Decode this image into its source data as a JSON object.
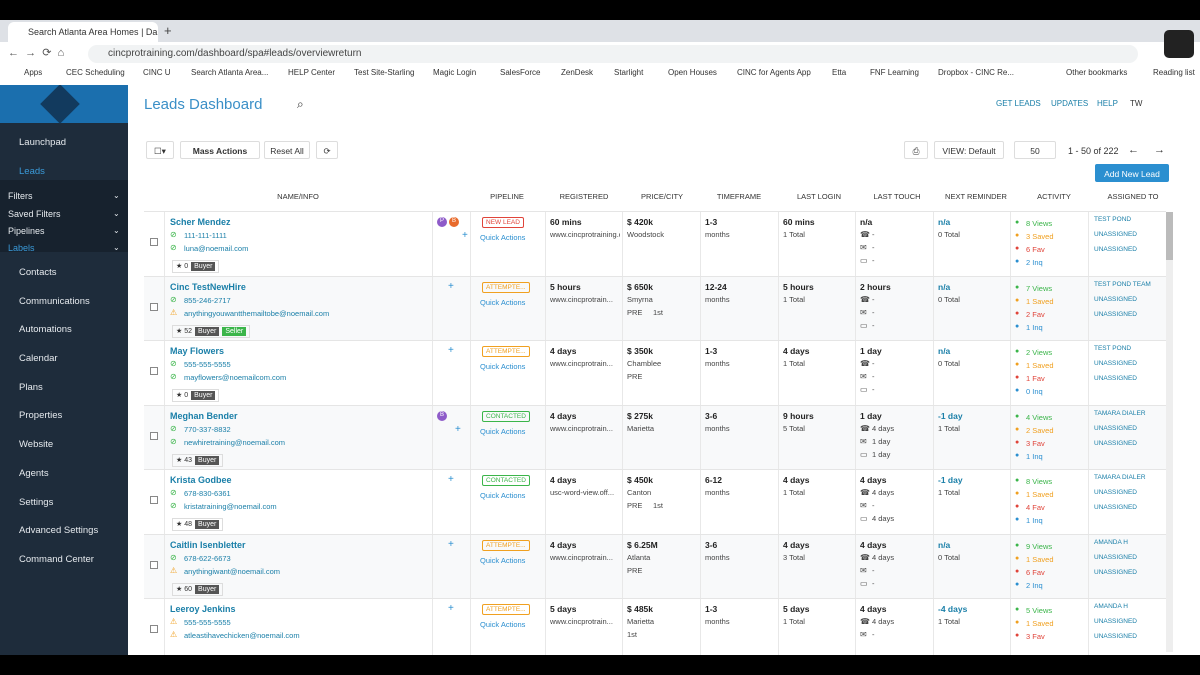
{
  "browser": {
    "tab_title": "Search Atlanta Area Homes | Da",
    "url": "cincprotraining.com/dashboard/spa#leads/overviewreturn",
    "bookmarks": [
      "Apps",
      "CEC Scheduling",
      "CINC U",
      "Search Atlanta Area...",
      "HELP Center",
      "Test Site-Starling",
      "Magic Login",
      "SalesForce",
      "ZenDesk",
      "Starlight",
      "Open Houses",
      "CINC for Agents App",
      "Etta",
      "FNF Learning",
      "Dropbox - CINC Re..."
    ],
    "other_bookmarks": "Other bookmarks",
    "reading_list": "Reading list"
  },
  "sidebar": {
    "top": [
      "Launchpad",
      "Leads"
    ],
    "sub": [
      "Filters",
      "Saved Filters",
      "Pipelines",
      "Labels"
    ],
    "items": [
      "Contacts",
      "Communications",
      "Automations",
      "Calendar",
      "Plans",
      "Properties",
      "Website",
      "Agents",
      "Settings",
      "Advanced Settings",
      "Command Center"
    ]
  },
  "header": {
    "title": "Leads Dashboard",
    "links": [
      "GET LEADS",
      "UPDATES",
      "HELP",
      "TW"
    ]
  },
  "toolbar": {
    "mass_actions": "Mass Actions",
    "reset": "Reset All",
    "view": "VIEW: Default",
    "per_page": "50",
    "range": "1 - 50 of 222",
    "add": "Add New Lead"
  },
  "columns": [
    "NAME/INFO",
    "PIPELINE",
    "REGISTERED",
    "PRICE/CITY",
    "TIMEFRAME",
    "LAST LOGIN",
    "LAST TOUCH",
    "NEXT REMINDER",
    "ACTIVITY",
    "ASSIGNED TO"
  ],
  "quick_actions": "Quick Actions",
  "leads": [
    {
      "name": "Scher Mendez",
      "phone": "111-111-1111",
      "email": "luna@noemail.com",
      "verified": [
        true,
        true
      ],
      "score": "0",
      "tags": [
        "Buyer"
      ],
      "avatars": [
        "P",
        "B"
      ],
      "pipeline": "NEW LEAD",
      "registered": [
        "60 mins",
        "www.cincprotraining.com"
      ],
      "price": "$ 420k",
      "city": [
        "Woodstock"
      ],
      "timeframe": [
        "1-3",
        "months"
      ],
      "login": [
        "60 mins",
        "1 Total"
      ],
      "touch": [
        "n/a",
        "-",
        "-",
        "-"
      ],
      "reminder": [
        "n/a",
        "0 Total"
      ],
      "activity": [
        "8 Views",
        "3 Saved",
        "6 Fav",
        "2 Inq"
      ],
      "assigned": [
        "TEST POND",
        "UNASSIGNED",
        "UNASSIGNED"
      ]
    },
    {
      "name": "Cinc TestNewHire",
      "phone": "855-246-2717",
      "email": "anythingyouwantthemailtobe@noemail.com",
      "verified": [
        true,
        false
      ],
      "score": "52",
      "tags": [
        "Buyer",
        "Seller"
      ],
      "avatars": [],
      "pipeline": "ATTEMPTE...",
      "registered": [
        "5 hours",
        "www.cincprotrain..."
      ],
      "price": "$ 650k",
      "city": [
        "Smyrna",
        "PRE",
        "1st"
      ],
      "timeframe": [
        "12-24",
        "months"
      ],
      "login": [
        "5 hours",
        "1 Total"
      ],
      "touch": [
        "2 hours",
        "-",
        "-",
        "-"
      ],
      "reminder": [
        "n/a",
        "0 Total"
      ],
      "activity": [
        "7 Views",
        "1 Saved",
        "2 Fav",
        "1 Inq"
      ],
      "assigned": [
        "TEST POND TEAM",
        "UNASSIGNED",
        "UNASSIGNED"
      ]
    },
    {
      "name": "May Flowers",
      "phone": "555-555-5555",
      "email": "mayflowers@noemailcom.com",
      "verified": [
        true,
        true
      ],
      "score": "0",
      "tags": [
        "Buyer"
      ],
      "avatars": [],
      "pipeline": "ATTEMPTE...",
      "registered": [
        "4 days",
        "www.cincprotrain..."
      ],
      "price": "$ 350k",
      "city": [
        "Chamblee",
        "PRE"
      ],
      "timeframe": [
        "1-3",
        "months"
      ],
      "login": [
        "4 days",
        "1 Total"
      ],
      "touch": [
        "1 day",
        "-",
        "-",
        "-"
      ],
      "reminder": [
        "n/a",
        "0 Total"
      ],
      "activity": [
        "2 Views",
        "1 Saved",
        "1 Fav",
        "0 Inq"
      ],
      "assigned": [
        "TEST POND",
        "UNASSIGNED",
        "UNASSIGNED"
      ]
    },
    {
      "name": "Meghan Bender",
      "phone": "770-337-8832",
      "email": "newhiretraining@noemail.com",
      "verified": [
        true,
        true
      ],
      "score": "43",
      "tags": [
        "Buyer"
      ],
      "avatars": [
        "B"
      ],
      "pipeline": "CONTACTED",
      "registered": [
        "4 days",
        "www.cincprotrain..."
      ],
      "price": "$ 275k",
      "city": [
        "Marietta"
      ],
      "timeframe": [
        "3-6",
        "months"
      ],
      "login": [
        "9 hours",
        "5 Total"
      ],
      "touch": [
        "1 day",
        "4 days",
        "1 day",
        "1 day"
      ],
      "reminder": [
        "-1 day",
        "1 Total"
      ],
      "activity": [
        "4 Views",
        "2 Saved",
        "3 Fav",
        "1 Inq"
      ],
      "assigned": [
        "TAMARA DIALER",
        "UNASSIGNED",
        "UNASSIGNED"
      ]
    },
    {
      "name": "Krista Godbee",
      "phone": "678-830-6361",
      "email": "kristatraining@noemail.com",
      "verified": [
        true,
        true
      ],
      "score": "48",
      "tags": [
        "Buyer"
      ],
      "avatars": [],
      "pipeline": "CONTACTED",
      "registered": [
        "4 days",
        "usc-word-view.off..."
      ],
      "price": "$ 450k",
      "city": [
        "Canton",
        "PRE",
        "1st"
      ],
      "timeframe": [
        "6-12",
        "months"
      ],
      "login": [
        "4 days",
        "1 Total"
      ],
      "touch": [
        "4 days",
        "4 days",
        "-",
        "4 days"
      ],
      "reminder": [
        "-1 day",
        "1 Total"
      ],
      "activity": [
        "8 Views",
        "1 Saved",
        "4 Fav",
        "1 Inq"
      ],
      "assigned": [
        "TAMARA DIALER",
        "UNASSIGNED",
        "UNASSIGNED"
      ]
    },
    {
      "name": "Caitlin Isenbletter",
      "phone": "678-622-6673",
      "email": "anythingiwant@noemail.com",
      "verified": [
        true,
        false
      ],
      "score": "60",
      "tags": [
        "Buyer"
      ],
      "avatars": [],
      "pipeline": "ATTEMPTE...",
      "registered": [
        "4 days",
        "www.cincprotrain..."
      ],
      "price": "$ 6.25M",
      "city": [
        "Atlanta",
        "PRE"
      ],
      "timeframe": [
        "3-6",
        "months"
      ],
      "login": [
        "4 days",
        "3 Total"
      ],
      "touch": [
        "4 days",
        "4 days",
        "-",
        "-"
      ],
      "reminder": [
        "n/a",
        "0 Total"
      ],
      "activity": [
        "9 Views",
        "1 Saved",
        "6 Fav",
        "2 Inq"
      ],
      "assigned": [
        "AMANDA H",
        "UNASSIGNED",
        "UNASSIGNED"
      ]
    },
    {
      "name": "Leeroy Jenkins",
      "phone": "555-555-5555",
      "email": "atleastihavechicken@noemail.com",
      "verified": [
        false,
        false
      ],
      "tags": [],
      "avatars": [],
      "pipeline": "ATTEMPTE...",
      "registered": [
        "5 days",
        "www.cincprotrain..."
      ],
      "price": "$ 485k",
      "city": [
        "Marietta",
        "1st"
      ],
      "timeframe": [
        "1-3",
        "months"
      ],
      "login": [
        "5 days",
        "1 Total"
      ],
      "touch": [
        "4 days",
        "4 days",
        "-"
      ],
      "reminder": [
        "-4 days",
        "1 Total"
      ],
      "activity": [
        "5 Views",
        "1 Saved",
        "3 Fav"
      ],
      "assigned": [
        "AMANDA H",
        "UNASSIGNED",
        "UNASSIGNED"
      ]
    }
  ]
}
